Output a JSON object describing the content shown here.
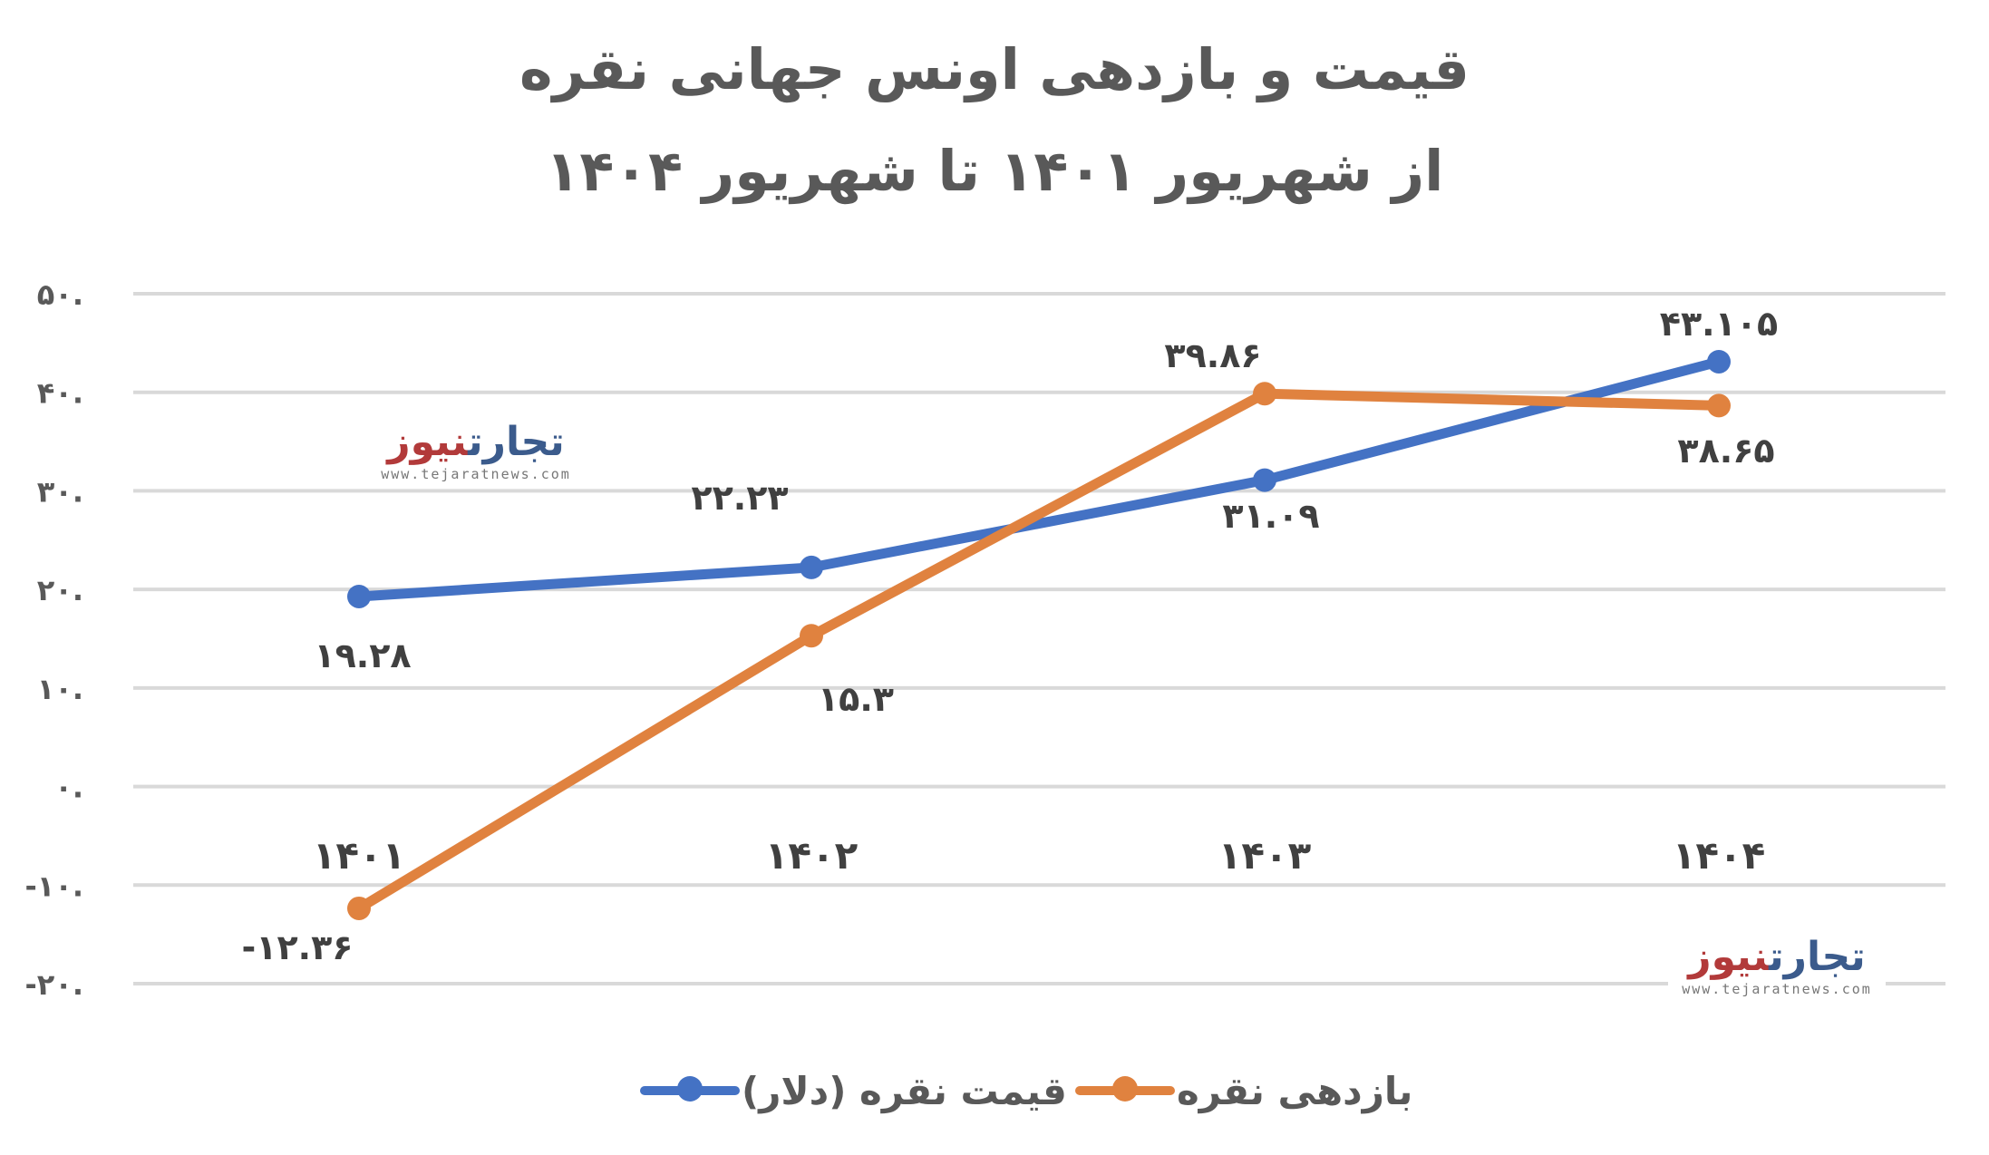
{
  "title": {
    "line1": "قیمت و بازدهی اونس جهانی نقره",
    "line2": "از شهریور ۱۴۰۱ تا شهریور ۱۴۰۴"
  },
  "y_axis": {
    "ticks": [
      {
        "value": 50,
        "label": "۵۰."
      },
      {
        "value": 40,
        "label": "۴۰."
      },
      {
        "value": 30,
        "label": "۳۰."
      },
      {
        "value": 20,
        "label": "۲۰."
      },
      {
        "value": 10,
        "label": "۱۰."
      },
      {
        "value": 0,
        "label": "۰."
      },
      {
        "value": -10,
        "label": "-۱۰."
      },
      {
        "value": -20,
        "label": "-۲۰."
      }
    ]
  },
  "x_axis": {
    "categories": [
      "۱۴۰۱",
      "۱۴۰۲",
      "۱۴۰۳",
      "۱۴۰۴"
    ]
  },
  "series": [
    {
      "name": "قیمت نقره (دلار)",
      "color": "#4472C4",
      "values": [
        19.28,
        22.23,
        31.09,
        43.105
      ],
      "labels": [
        "۱۹.۲۸",
        "۲۲.۲۳",
        "۳۱.۰۹",
        "۴۳.۱۰۵"
      ]
    },
    {
      "name": "بازدهی نقره",
      "color": "#E0823F",
      "values": [
        -12.36,
        15.3,
        39.86,
        38.65
      ],
      "labels": [
        "-۱۲.۳۶",
        "۱۵.۳",
        "۳۹.۸۶",
        "۳۸.۶۵"
      ]
    }
  ],
  "legend": {
    "items": [
      {
        "label": "بازدهی نقره",
        "color": "#E0823F"
      },
      {
        "label": "قیمت نقره (دلار)",
        "color": "#4472C4"
      }
    ]
  },
  "watermark": {
    "logo_part1": "تجارت",
    "logo_part2": "نیوز",
    "url": "www.tejaratnews.com"
  },
  "chart_data": {
    "type": "line",
    "title": "قیمت و بازدهی اونس جهانی نقره — از شهریور ۱۴۰۱ تا شهریور ۱۴۰۴",
    "categories": [
      "1401",
      "1402",
      "1403",
      "1404"
    ],
    "series": [
      {
        "name": "قیمت نقره (دلار)",
        "values": [
          19.28,
          22.23,
          31.09,
          43.105
        ]
      },
      {
        "name": "بازدهی نقره",
        "values": [
          -12.36,
          15.3,
          39.86,
          38.65
        ]
      }
    ],
    "xlabel": "",
    "ylabel": "",
    "ylim": [
      -20,
      50
    ],
    "yticks": [
      -20,
      -10,
      0,
      10,
      20,
      30,
      40,
      50
    ],
    "grid": true,
    "legend_position": "bottom",
    "data_labels": true
  }
}
